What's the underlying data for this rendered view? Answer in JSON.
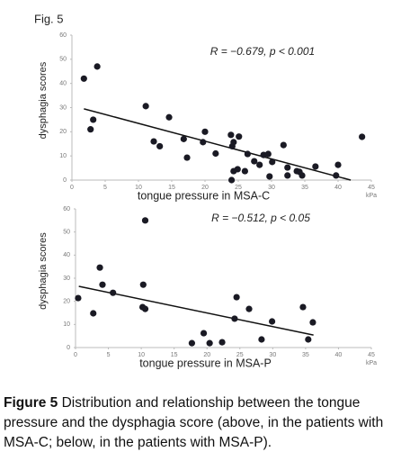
{
  "figure_label": "Fig. 5",
  "caption": {
    "label": "Figure 5",
    "text": "Distribution and relationship between the tongue pressure and the dysphagia score (above, in the patients with MSA-C; below, in the patients with MSA-P)."
  },
  "chart_data": [
    {
      "type": "scatter",
      "annotation": "R = −0.679, p < 0.001",
      "xlabel": "tongue pressure in MSA-C",
      "ylabel": "dysphagia scores",
      "x_unit": "kPa",
      "color": "#1a1a24",
      "grid": false,
      "x": [
        1.8,
        3.8,
        3.2,
        2.8,
        11.1,
        14.6,
        12.3,
        13.2,
        16.8,
        17.3,
        20,
        19.7,
        21.6,
        23.9,
        25.1,
        24.3,
        24.1,
        24.3,
        24.9,
        26,
        24,
        26.4,
        27.4,
        28.2,
        28.8,
        29.5,
        30.1,
        29.7,
        31.8,
        32.4,
        32.4,
        33.8,
        34.2,
        34.6,
        36.6,
        40,
        39.7,
        43.6
      ],
      "values": [
        42,
        47,
        25,
        21,
        30.6,
        26,
        16,
        14,
        17,
        9.3,
        20,
        15.7,
        11,
        18.7,
        18,
        15.7,
        14,
        3.7,
        4.5,
        3.7,
        0,
        10.8,
        7.8,
        6.3,
        10.4,
        10.8,
        7.5,
        1.5,
        14.5,
        5.2,
        1.9,
        3.7,
        3.4,
        1.9,
        5.6,
        6.3,
        1.9,
        17.9
      ],
      "trendline": {
        "x": [
          1.8,
          41.9
        ],
        "y": [
          29.5,
          0
        ]
      },
      "xlim": [
        0,
        45
      ],
      "xticks": [
        0,
        5,
        10,
        15,
        20,
        25,
        30,
        35,
        40,
        45
      ],
      "ylim": [
        0,
        60
      ],
      "yticks": [
        0,
        10,
        20,
        30,
        40,
        50,
        60
      ]
    },
    {
      "type": "scatter",
      "annotation": "R = −0.512, p < 0.05",
      "xlabel": "tongue pressure in MSA-P",
      "ylabel": "dysphagia scores",
      "x_unit": "kPa",
      "color": "#1a1a24",
      "grid": false,
      "x": [
        0.4,
        2.7,
        3.7,
        4.1,
        5.7,
        10.6,
        10.3,
        10.2,
        10.6,
        17.7,
        19.5,
        20.4,
        22.3,
        24.2,
        24.5,
        26.4,
        28.3,
        29.9,
        34.6,
        35.4,
        36.1
      ],
      "values": [
        21.4,
        14.8,
        34.6,
        27.2,
        23.7,
        55,
        27.2,
        17.5,
        16.7,
        1.9,
        6.2,
        1.9,
        2.3,
        12.5,
        21.8,
        16.7,
        3.5,
        11.3,
        17.5,
        3.5,
        10.9
      ],
      "trendline": {
        "x": [
          0.5,
          36.2
        ],
        "y": [
          26.5,
          5.4
        ]
      },
      "xlim": [
        0,
        45
      ],
      "xticks": [
        0,
        5,
        10,
        15,
        20,
        25,
        30,
        35,
        40,
        45
      ],
      "ylim": [
        0,
        60
      ],
      "yticks": [
        0,
        10,
        20,
        30,
        40,
        50,
        60
      ]
    }
  ]
}
